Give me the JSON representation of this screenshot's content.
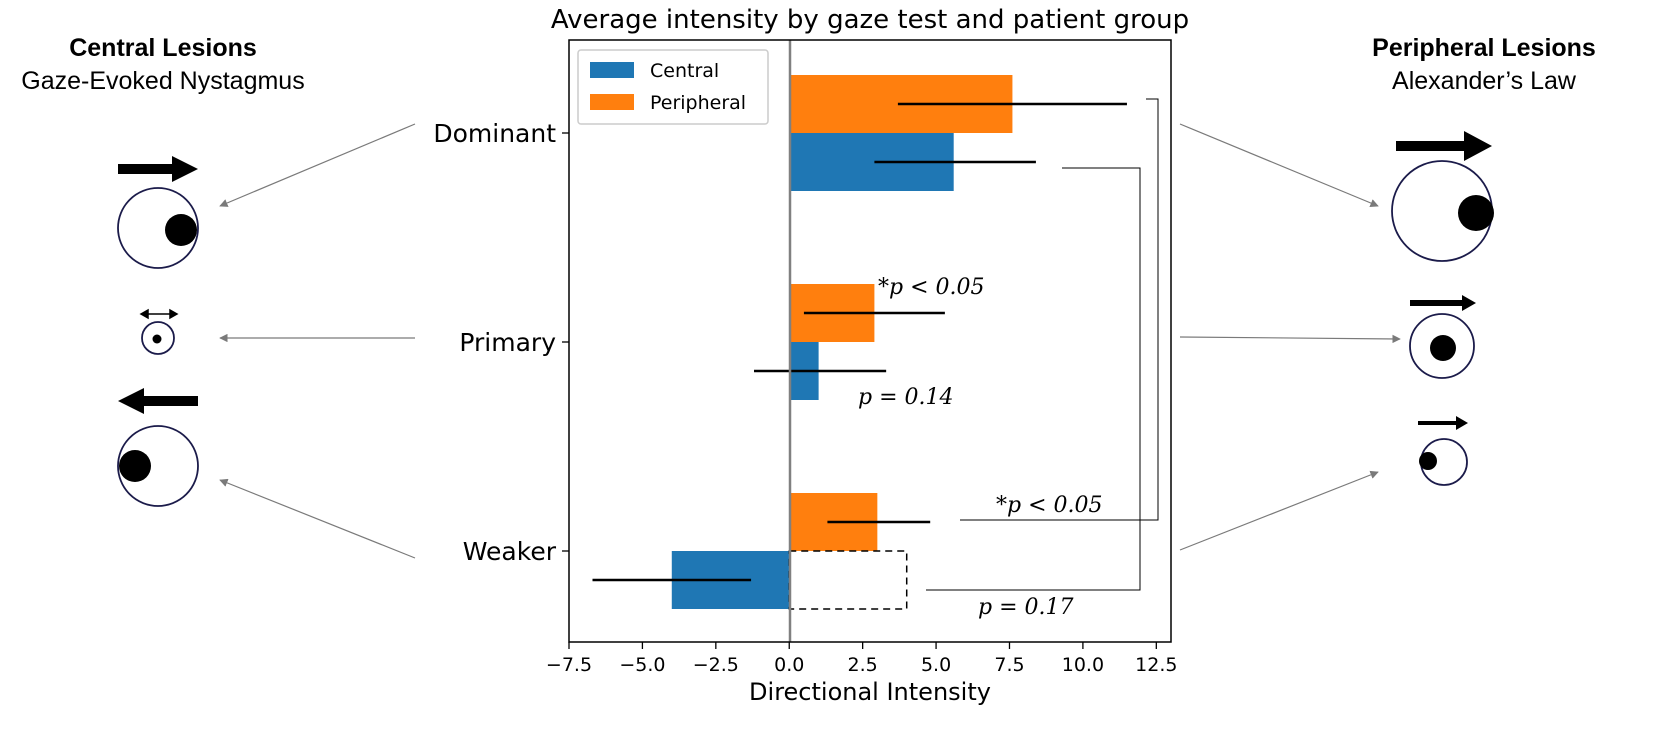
{
  "chart_data": {
    "type": "bar",
    "orientation": "horizontal",
    "title": "Average intensity by gaze test and patient group",
    "xlabel": "Directional Intensity",
    "ylabel": "",
    "xlim": [
      -7.5,
      13.0
    ],
    "xticks": [
      -7.5,
      -5.0,
      -2.5,
      0.0,
      2.5,
      5.0,
      7.5,
      10.0,
      12.5
    ],
    "xtick_labels": [
      "−7.5",
      "−5.0",
      "−2.5",
      "0.0",
      "2.5",
      "5.0",
      "7.5",
      "10.0",
      "12.5"
    ],
    "categories": [
      "Dominant",
      "Primary",
      "Weaker"
    ],
    "series": [
      {
        "name": "Peripheral",
        "color": "#ff7f0e",
        "values": [
          7.6,
          2.9,
          3.0
        ],
        "err_low": [
          3.7,
          0.5,
          1.3
        ],
        "err_high": [
          11.5,
          5.3,
          4.8
        ]
      },
      {
        "name": "Central",
        "color": "#1f77b4",
        "values": [
          5.6,
          1.0,
          -4.0
        ],
        "err_low": [
          2.9,
          -1.2,
          -6.7
        ],
        "err_high": [
          8.4,
          3.3,
          -1.3
        ]
      }
    ],
    "mirrored_central_weaker": 4.0,
    "legend": {
      "entries": [
        "Central",
        "Peripheral"
      ],
      "position": "upper left"
    },
    "annotations": [
      {
        "id": "primary_sig",
        "text": "*p < 0.05"
      },
      {
        "id": "primary_ns",
        "text": "p = 0.14"
      },
      {
        "id": "peripheral_sig",
        "text": "*p < 0.05"
      },
      {
        "id": "central_ns",
        "text": "p = 0.17"
      }
    ]
  },
  "panels": {
    "left": {
      "title": "Central Lesions",
      "subtitle": "Gaze-Evoked Nystagmus"
    },
    "right": {
      "title": "Peripheral Lesions",
      "subtitle": "Alexander’s Law"
    }
  }
}
